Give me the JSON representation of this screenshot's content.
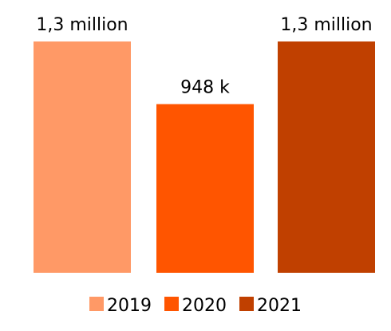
{
  "chart_data": {
    "type": "bar",
    "categories": [
      "2019",
      "2020",
      "2021"
    ],
    "values": [
      1300000,
      948000,
      1300000
    ],
    "data_labels": [
      "1,3 million",
      "948 k",
      "1,3 million"
    ],
    "colors": [
      "#FF9966",
      "#FF5500",
      "#C04000"
    ],
    "ylim": [
      0,
      1300000
    ],
    "grid": false,
    "legend": {
      "position": "bottom",
      "entries": [
        "2019",
        "2020",
        "2021"
      ]
    },
    "title": "",
    "xlabel": "",
    "ylabel": ""
  }
}
